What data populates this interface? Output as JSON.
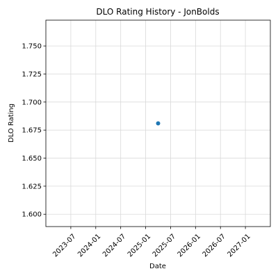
{
  "chart_data": {
    "type": "scatter",
    "title": "DLO Rating History - JonBolds",
    "xlabel": "Date",
    "ylabel": "DLO Rating",
    "x_ticks": [
      "2023-07",
      "2024-01",
      "2024-07",
      "2025-01",
      "2025-07",
      "2026-01",
      "2026-07",
      "2027-01"
    ],
    "y_ticks": [
      "1.600",
      "1.625",
      "1.650",
      "1.675",
      "1.700",
      "1.725",
      "1.750"
    ],
    "xlim": [
      "2023-01",
      "2027-07"
    ],
    "ylim": [
      1.589,
      1.773
    ],
    "grid": true,
    "points": [
      {
        "x": "2025-04",
        "y": 1.681
      }
    ],
    "colors": {
      "point": "#1f77b4",
      "grid": "#d9d9d9",
      "axis": "#000000"
    }
  }
}
